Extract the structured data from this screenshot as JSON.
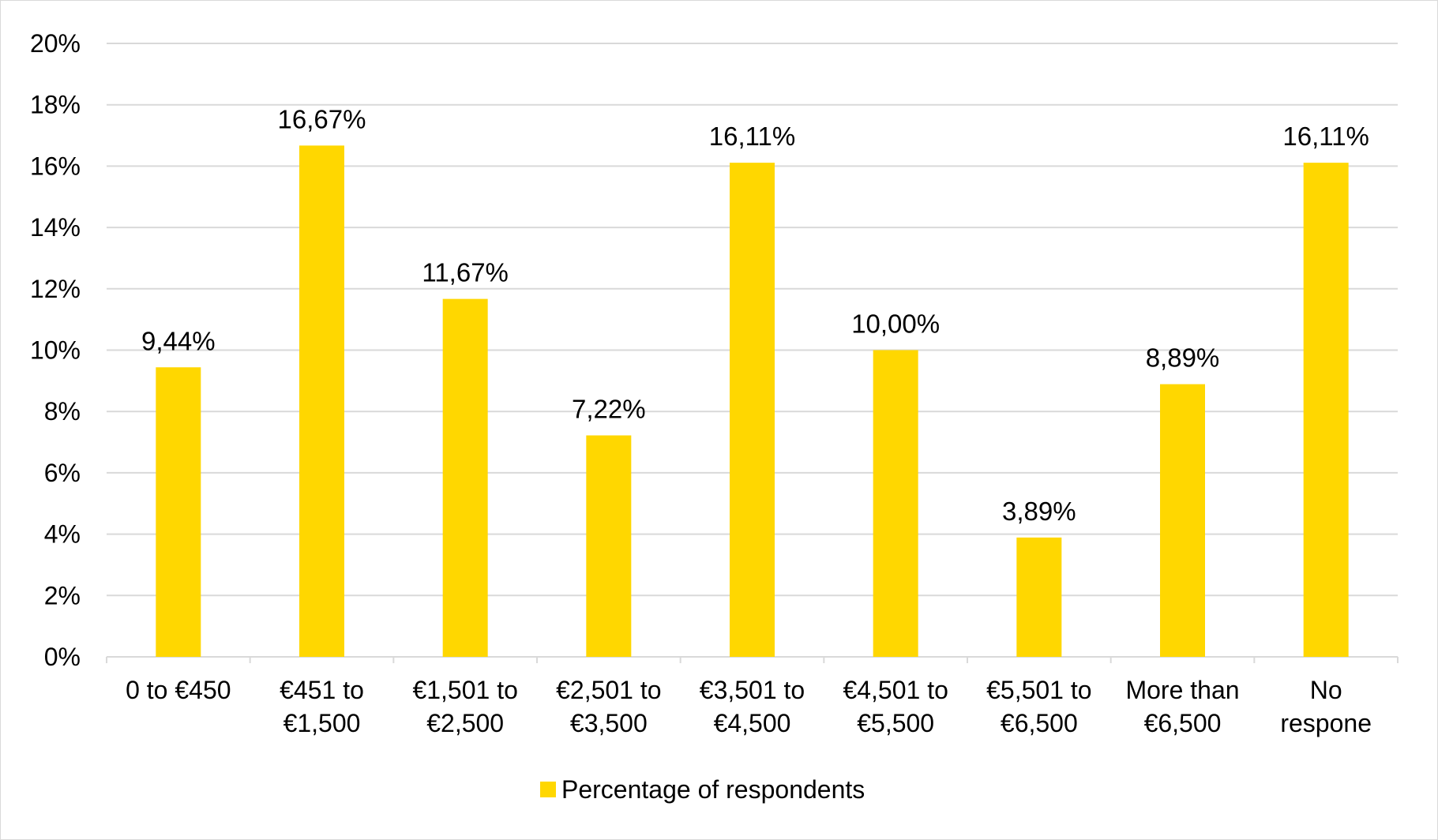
{
  "chart_data": {
    "type": "bar",
    "title": "",
    "xlabel": "",
    "ylabel": "",
    "categories": [
      [
        "0 to €450"
      ],
      [
        "€451 to",
        "€1,500"
      ],
      [
        "€1,501 to",
        "€2,500"
      ],
      [
        "€2,501 to",
        "€3,500"
      ],
      [
        "€3,501 to",
        "€4,500"
      ],
      [
        "€4,501 to",
        "€5,500"
      ],
      [
        "€5,501 to",
        "€6,500"
      ],
      [
        "More than",
        "€6,500"
      ],
      [
        "No",
        "respone"
      ]
    ],
    "series": [
      {
        "name": "Percentage of respondents",
        "color": "#FFD700",
        "values": [
          9.44,
          16.67,
          11.67,
          7.22,
          16.11,
          10.0,
          3.89,
          8.89,
          16.11
        ],
        "data_labels": [
          "9,44%",
          "16,67%",
          "11,67%",
          "7,22%",
          "16,11%",
          "10,00%",
          "3,89%",
          "8,89%",
          "16,11%"
        ]
      }
    ],
    "ylim": [
      0,
      20
    ],
    "yticks": [
      0,
      2,
      4,
      6,
      8,
      10,
      12,
      14,
      16,
      18,
      20
    ],
    "ytick_labels": [
      "0%",
      "2%",
      "4%",
      "6%",
      "8%",
      "10%",
      "12%",
      "14%",
      "16%",
      "18%",
      "20%"
    ],
    "grid": true,
    "gridline_color": "#d9d9d9",
    "legend_position": "bottom"
  }
}
